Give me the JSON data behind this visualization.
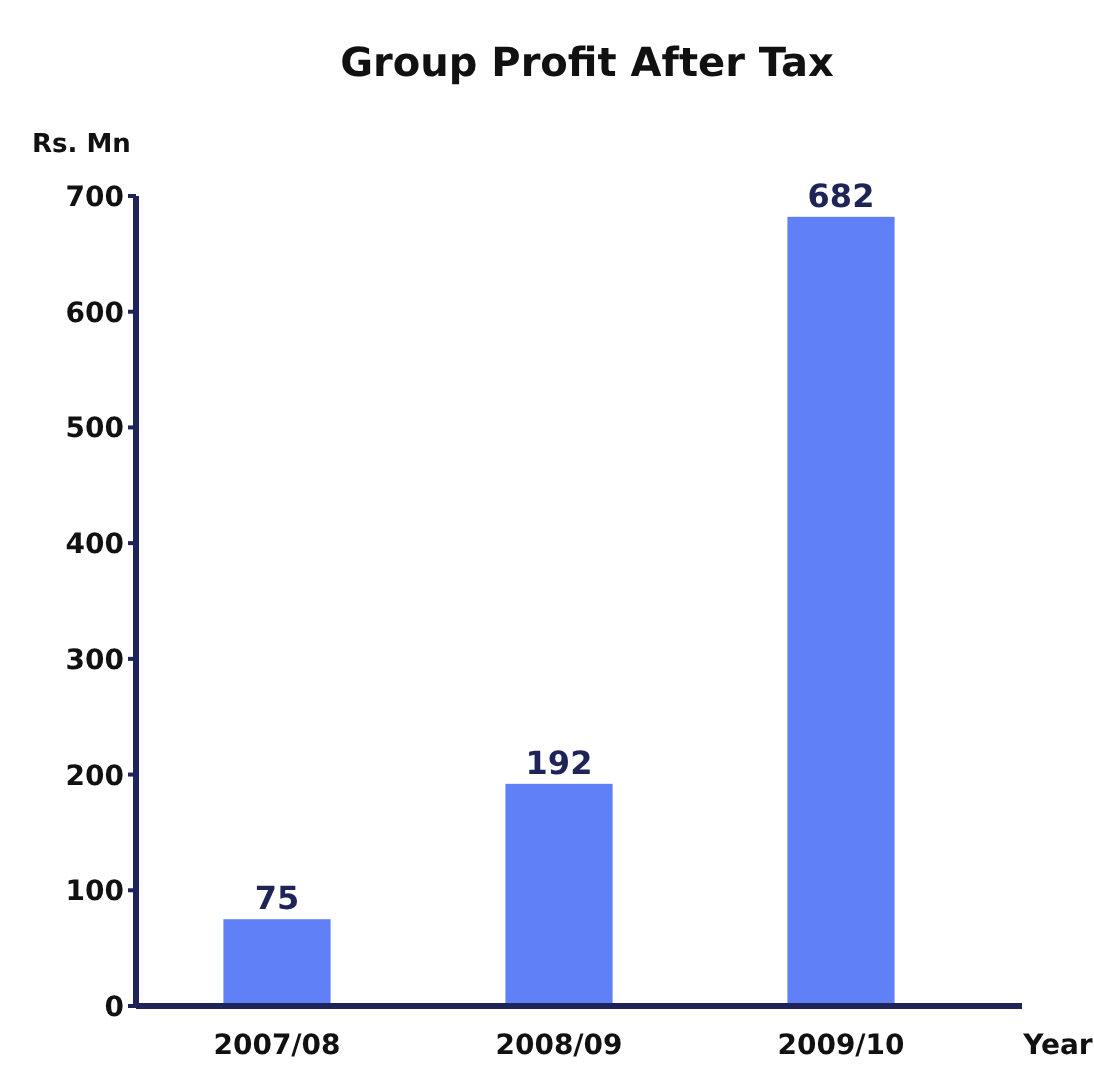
{
  "chart_data": {
    "type": "bar",
    "title": "Group Profit After Tax",
    "ylabel": "Rs. Mn",
    "xlabel": "Year",
    "categories": [
      "2007/08",
      "2008/09",
      "2009/10"
    ],
    "values": [
      75,
      192,
      682
    ],
    "color": "#6080f8",
    "data_labels": true,
    "ylim": [
      0,
      700
    ],
    "yticks": [
      0,
      100,
      200,
      300,
      400,
      500,
      600,
      700
    ],
    "grid": false
  }
}
